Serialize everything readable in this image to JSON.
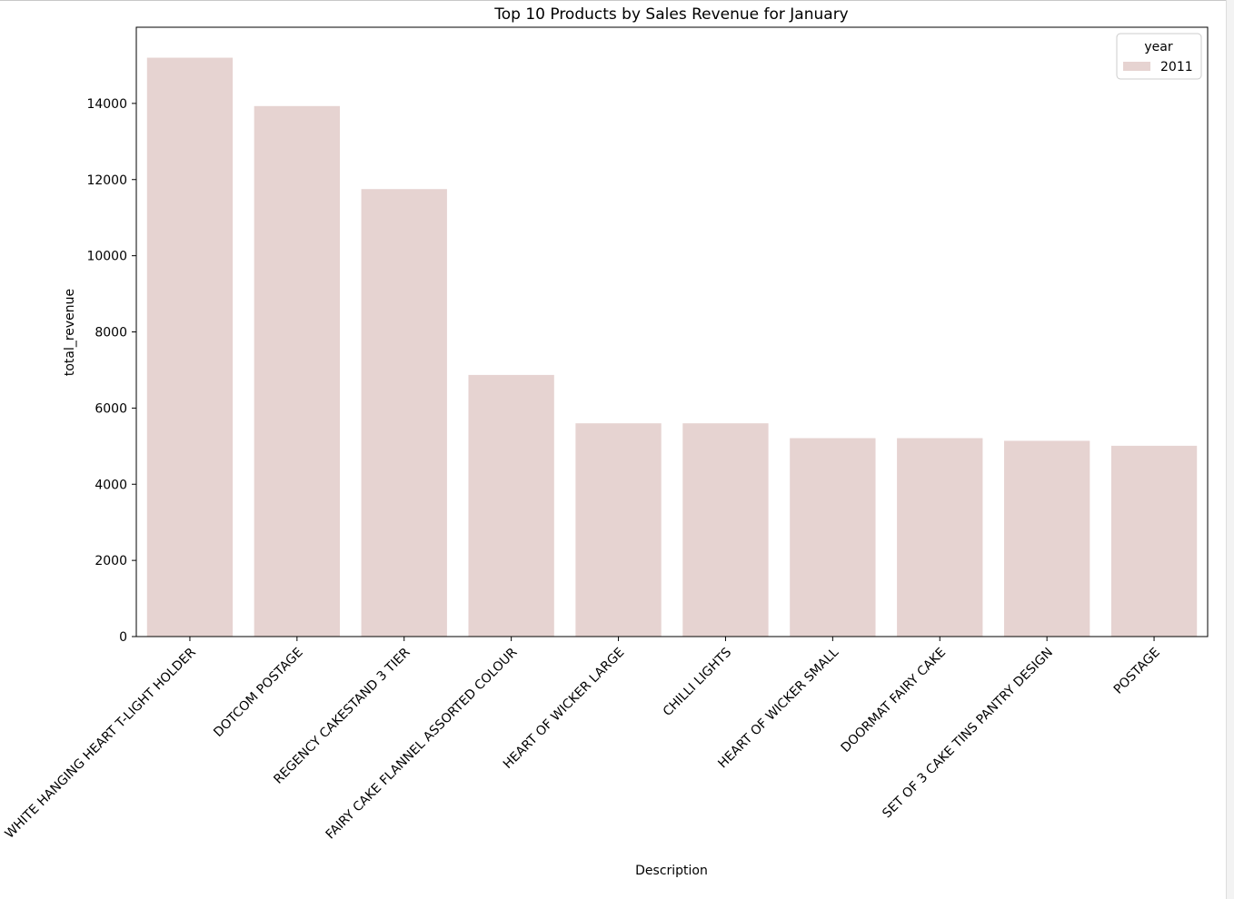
{
  "chart_data": {
    "type": "bar",
    "title": "Top 10 Products by Sales Revenue for January",
    "xlabel": "Description",
    "ylabel": "total_revenue",
    "ylim": [
      0,
      16000
    ],
    "yticks": [
      0,
      2000,
      4000,
      6000,
      8000,
      10000,
      12000,
      14000
    ],
    "categories": [
      "WHITE HANGING HEART T-LIGHT HOLDER",
      "DOTCOM POSTAGE",
      "REGENCY CAKESTAND 3 TIER",
      "FAIRY CAKE FLANNEL ASSORTED COLOUR",
      "HEART OF WICKER LARGE",
      "CHILLI LIGHTS",
      "HEART OF WICKER SMALL",
      "DOORMAT FAIRY CAKE",
      "SET OF 3 CAKE TINS PANTRY DESIGN",
      "POSTAGE"
    ],
    "series": [
      {
        "name": "2011",
        "values": [
          15200,
          13930,
          11750,
          6870,
          5600,
          5600,
          5210,
          5210,
          5140,
          5010
        ]
      }
    ],
    "legend": {
      "title": "year",
      "position": "top-right"
    },
    "grid": false,
    "colors": {
      "bar": "#e6d3d1",
      "axis": "#000000"
    }
  }
}
